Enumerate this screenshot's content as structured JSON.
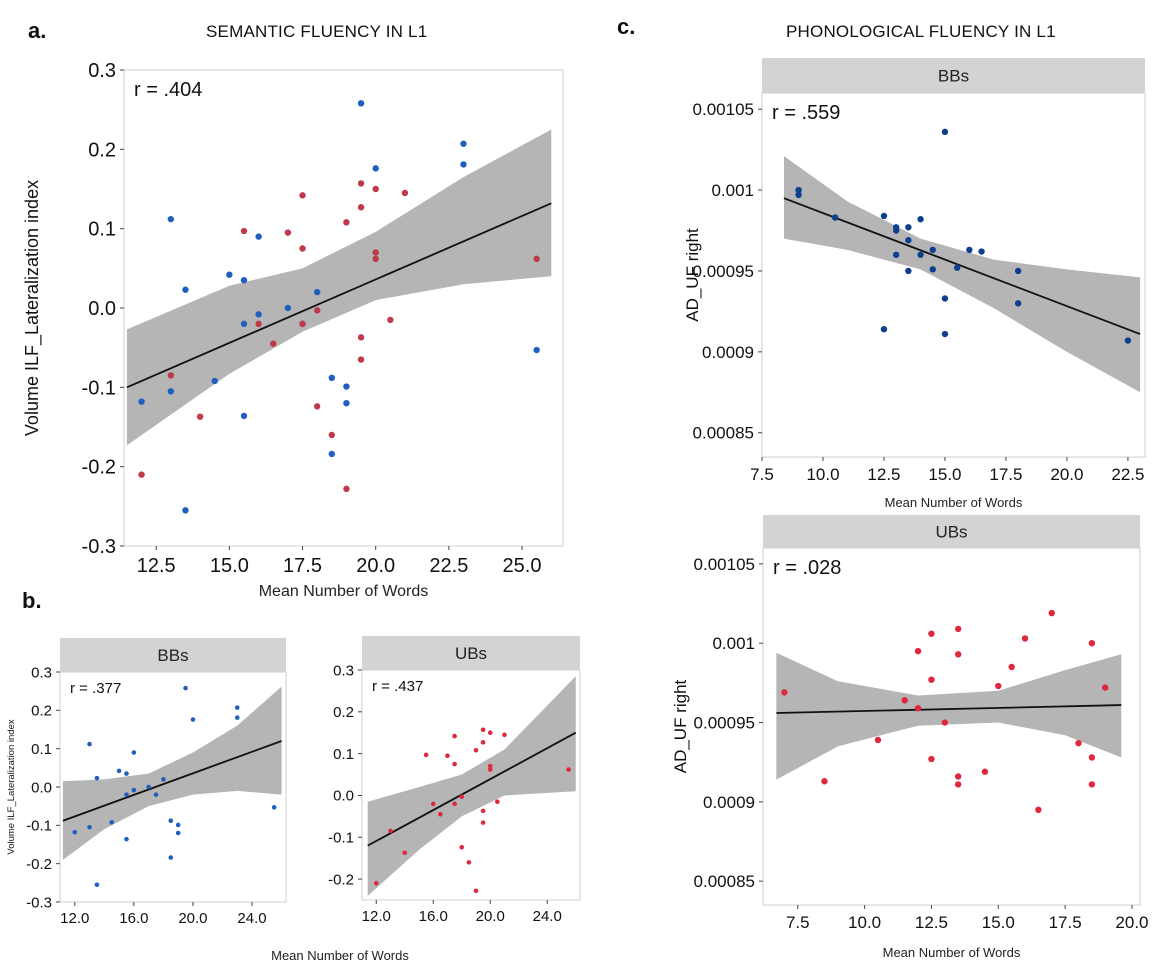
{
  "labels": {
    "a": "a.",
    "b": "b.",
    "c": "c."
  },
  "titles": {
    "left": "SEMANTIC FLUENCY IN L1",
    "right": "PHONOLOGICAL FLUENCY IN L1"
  },
  "colors": {
    "bb": "#1f5fbf",
    "ub_a": "#c0394a",
    "ub": "#e0283c",
    "bb_c": "#0d3f8f",
    "band": "#a8a8a8",
    "strip": "#d3d3d3"
  },
  "chart_data": [
    {
      "id": "a",
      "type": "scatter",
      "xlabel": "Mean Number of Words",
      "ylabel": "Volume ILF_Lateralization index",
      "xlim": [
        11.4,
        26.4
      ],
      "ylim": [
        -0.3,
        0.3
      ],
      "xticks": [
        12.5,
        15.0,
        17.5,
        20.0,
        22.5,
        25.0
      ],
      "xticklabels": [
        "12.5",
        "15.0",
        "17.5",
        "20.0",
        "22.5",
        "25.0"
      ],
      "yticks": [
        -0.3,
        -0.2,
        -0.1,
        0.0,
        0.1,
        0.2,
        0.3
      ],
      "yticklabels": [
        "-0.3",
        "-0.2",
        "-0.1",
        "0.0",
        "0.1",
        "0.2",
        "0.3"
      ],
      "annotation": "r = .404",
      "fit": [
        [
          11.5,
          -0.1
        ],
        [
          26.0,
          0.132
        ]
      ],
      "band_upper": [
        [
          11.5,
          -0.027
        ],
        [
          15,
          0.028
        ],
        [
          17.5,
          0.05
        ],
        [
          20,
          0.096
        ],
        [
          23,
          0.165
        ],
        [
          26,
          0.225
        ]
      ],
      "band_lower": [
        [
          11.5,
          -0.173
        ],
        [
          15,
          -0.083
        ],
        [
          17.5,
          -0.03
        ],
        [
          20,
          0.01
        ],
        [
          23,
          0.03
        ],
        [
          26,
          0.04
        ]
      ],
      "series": [
        {
          "color": "#1f5fbf",
          "points": [
            [
              12.0,
              -0.118
            ],
            [
              13.0,
              0.112
            ],
            [
              13.0,
              -0.105
            ],
            [
              13.5,
              0.023
            ],
            [
              13.5,
              -0.255
            ],
            [
              14.5,
              -0.092
            ],
            [
              15.0,
              0.042
            ],
            [
              15.5,
              0.035
            ],
            [
              15.5,
              -0.02
            ],
            [
              15.5,
              -0.136
            ],
            [
              16.0,
              0.09
            ],
            [
              16.0,
              -0.008
            ],
            [
              17.0,
              0.0
            ],
            [
              17.5,
              -0.02
            ],
            [
              18.0,
              0.02
            ],
            [
              18.5,
              -0.088
            ],
            [
              18.5,
              -0.184
            ],
            [
              19.0,
              -0.099
            ],
            [
              19.0,
              -0.12
            ],
            [
              19.5,
              0.258
            ],
            [
              20.0,
              0.176
            ],
            [
              23.0,
              0.207
            ],
            [
              23.0,
              0.181
            ],
            [
              25.5,
              -0.053
            ]
          ]
        },
        {
          "color": "#c0394a",
          "points": [
            [
              12.0,
              -0.21
            ],
            [
              13.0,
              -0.085
            ],
            [
              14.0,
              -0.137
            ],
            [
              15.5,
              0.097
            ],
            [
              16.0,
              -0.02
            ],
            [
              16.5,
              -0.045
            ],
            [
              17.0,
              0.095
            ],
            [
              17.5,
              0.142
            ],
            [
              17.5,
              0.075
            ],
            [
              17.5,
              -0.02
            ],
            [
              18.0,
              -0.003
            ],
            [
              18.0,
              -0.124
            ],
            [
              18.5,
              -0.16
            ],
            [
              19.0,
              0.108
            ],
            [
              19.0,
              -0.228
            ],
            [
              19.5,
              0.157
            ],
            [
              19.5,
              0.127
            ],
            [
              19.5,
              -0.037
            ],
            [
              19.5,
              -0.065
            ],
            [
              20.0,
              0.15
            ],
            [
              20.0,
              0.07
            ],
            [
              20.0,
              0.062
            ],
            [
              20.5,
              -0.015
            ],
            [
              21.0,
              0.145
            ],
            [
              25.5,
              0.062
            ]
          ]
        }
      ]
    },
    {
      "id": "b-bbs",
      "type": "scatter",
      "strip": "BBs",
      "xlabel": "",
      "ylabel": "Volume ILF_Lateralization index",
      "xlim": [
        11,
        26.3
      ],
      "ylim": [
        -0.3,
        0.3
      ],
      "xticks": [
        12,
        16,
        20,
        24
      ],
      "xticklabels": [
        "12.0",
        "16.0",
        "20.0",
        "24.0"
      ],
      "yticks": [
        -0.3,
        -0.2,
        -0.1,
        0.0,
        0.1,
        0.2,
        0.3
      ],
      "yticklabels": [
        "-0.3",
        "-0.2",
        "-0.1",
        "0.0",
        "0.1",
        "0.2",
        "0.3"
      ],
      "annotation": "r = .377",
      "fit": [
        [
          11.2,
          -0.088
        ],
        [
          26.0,
          0.12
        ]
      ],
      "band_upper": [
        [
          11.2,
          0.015
        ],
        [
          14,
          0.02
        ],
        [
          17,
          0.035
        ],
        [
          20,
          0.09
        ],
        [
          23,
          0.16
        ],
        [
          26,
          0.262
        ]
      ],
      "band_lower": [
        [
          11.2,
          -0.19
        ],
        [
          14,
          -0.11
        ],
        [
          17,
          -0.05
        ],
        [
          20,
          -0.02
        ],
        [
          23,
          -0.01
        ],
        [
          26,
          -0.02
        ]
      ],
      "series": [
        {
          "color": "#1f5fbf",
          "points": [
            [
              12.0,
              -0.118
            ],
            [
              13.0,
              0.112
            ],
            [
              13.0,
              -0.105
            ],
            [
              13.5,
              0.023
            ],
            [
              13.5,
              -0.255
            ],
            [
              14.5,
              -0.092
            ],
            [
              15.0,
              0.042
            ],
            [
              15.5,
              0.035
            ],
            [
              15.5,
              -0.02
            ],
            [
              15.5,
              -0.136
            ],
            [
              16.0,
              0.09
            ],
            [
              16.0,
              -0.008
            ],
            [
              17.0,
              0.0
            ],
            [
              17.5,
              -0.02
            ],
            [
              18.0,
              0.02
            ],
            [
              18.5,
              -0.088
            ],
            [
              18.5,
              -0.184
            ],
            [
              19.0,
              -0.099
            ],
            [
              19.0,
              -0.12
            ],
            [
              19.5,
              0.258
            ],
            [
              20.0,
              0.176
            ],
            [
              23.0,
              0.207
            ],
            [
              23.0,
              0.181
            ],
            [
              25.5,
              -0.053
            ]
          ]
        }
      ]
    },
    {
      "id": "b-ubs",
      "type": "scatter",
      "strip": "UBs",
      "xlabel": "",
      "ylabel": "",
      "xlim": [
        11,
        26.3
      ],
      "ylim": [
        -0.25,
        0.3
      ],
      "xticks": [
        12,
        16,
        20,
        24
      ],
      "xticklabels": [
        "12.0",
        "16.0",
        "20.0",
        "24.0"
      ],
      "yticks": [
        -0.2,
        -0.1,
        0.0,
        0.1,
        0.2,
        0.3
      ],
      "yticklabels": [
        "-0.2",
        "-0.1",
        "0.0",
        "0.1",
        "0.2",
        "0.3"
      ],
      "annotation": "r = .437",
      "fit": [
        [
          11.4,
          -0.12
        ],
        [
          26.0,
          0.15
        ]
      ],
      "band_upper": [
        [
          11.4,
          -0.015
        ],
        [
          15,
          0.02
        ],
        [
          18,
          0.05
        ],
        [
          21,
          0.11
        ],
        [
          26,
          0.285
        ]
      ],
      "band_lower": [
        [
          11.4,
          -0.24
        ],
        [
          15,
          -0.13
        ],
        [
          18,
          -0.05
        ],
        [
          21,
          0.0
        ],
        [
          26,
          0.01
        ]
      ],
      "series": [
        {
          "color": "#e0283c",
          "points": [
            [
              12.0,
              -0.21
            ],
            [
              13.0,
              -0.085
            ],
            [
              14.0,
              -0.137
            ],
            [
              15.5,
              0.097
            ],
            [
              16.0,
              -0.02
            ],
            [
              16.5,
              -0.045
            ],
            [
              17.0,
              0.095
            ],
            [
              17.5,
              0.142
            ],
            [
              17.5,
              0.075
            ],
            [
              17.5,
              -0.02
            ],
            [
              18.0,
              -0.003
            ],
            [
              18.0,
              -0.124
            ],
            [
              18.5,
              -0.16
            ],
            [
              19.0,
              0.108
            ],
            [
              19.0,
              -0.228
            ],
            [
              19.5,
              0.157
            ],
            [
              19.5,
              0.127
            ],
            [
              19.5,
              -0.037
            ],
            [
              19.5,
              -0.065
            ],
            [
              20.0,
              0.15
            ],
            [
              20.0,
              0.07
            ],
            [
              20.0,
              0.062
            ],
            [
              20.5,
              -0.015
            ],
            [
              21.0,
              0.145
            ],
            [
              25.5,
              0.062
            ]
          ]
        }
      ]
    },
    {
      "id": "c-bbs",
      "type": "scatter",
      "strip": "BBs",
      "xlabel": "Mean Number of Words",
      "ylabel": "AD_UF right",
      "xlim": [
        7.5,
        23.2
      ],
      "ylim": [
        0.000835,
        0.00106
      ],
      "xticks": [
        7.5,
        10,
        12.5,
        15,
        17.5,
        20,
        22.5
      ],
      "xticklabels": [
        "7.5",
        "10.0",
        "12.5",
        "15.0",
        "17.5",
        "20.0",
        "22.5"
      ],
      "yticks": [
        0.00085,
        0.0009,
        0.00095,
        0.001,
        0.00105
      ],
      "yticklabels": [
        "0.00085",
        "0.0009",
        "0.00095",
        "0.001",
        "0.00105"
      ],
      "annotation": "r = .559",
      "fit": [
        [
          8.4,
          0.000995
        ],
        [
          23.0,
          0.000911
        ]
      ],
      "band_upper": [
        [
          8.4,
          0.001021
        ],
        [
          11,
          0.000993
        ],
        [
          14,
          0.00097
        ],
        [
          17,
          0.000957
        ],
        [
          20,
          0.000951
        ],
        [
          23,
          0.000946
        ]
      ],
      "band_lower": [
        [
          8.4,
          0.00097
        ],
        [
          11,
          0.000963
        ],
        [
          14,
          0.000951
        ],
        [
          17,
          0.000927
        ],
        [
          20,
          0.0009
        ],
        [
          23,
          0.000875
        ]
      ],
      "series": [
        {
          "color": "#0d3f8f",
          "points": [
            [
              9.0,
              0.001
            ],
            [
              9.0,
              0.000997
            ],
            [
              10.5,
              0.000983
            ],
            [
              12.5,
              0.000984
            ],
            [
              12.5,
              0.000914
            ],
            [
              13.0,
              0.000977
            ],
            [
              13.0,
              0.000975
            ],
            [
              13.0,
              0.00096
            ],
            [
              13.5,
              0.000977
            ],
            [
              13.5,
              0.000969
            ],
            [
              13.5,
              0.00095
            ],
            [
              14.0,
              0.000982
            ],
            [
              14.0,
              0.00096
            ],
            [
              14.5,
              0.000963
            ],
            [
              14.5,
              0.000951
            ],
            [
              15.0,
              0.001036
            ],
            [
              15.0,
              0.000933
            ],
            [
              15.0,
              0.000911
            ],
            [
              15.5,
              0.000952
            ],
            [
              16.0,
              0.000963
            ],
            [
              16.5,
              0.000962
            ],
            [
              18.0,
              0.00095
            ],
            [
              18.0,
              0.00093
            ],
            [
              22.5,
              0.000907
            ]
          ]
        }
      ]
    },
    {
      "id": "c-ubs",
      "type": "scatter",
      "strip": "UBs",
      "xlabel": "Mean Number of Words",
      "ylabel": "AD_UF right",
      "xlim": [
        6.2,
        20.3
      ],
      "ylim": [
        0.000835,
        0.00106
      ],
      "xticks": [
        7.5,
        10,
        12.5,
        15,
        17.5,
        20
      ],
      "xticklabels": [
        "7.5",
        "10.0",
        "12.5",
        "15.0",
        "17.5",
        "20.0"
      ],
      "yticks": [
        0.00085,
        0.0009,
        0.00095,
        0.001,
        0.00105
      ],
      "yticklabels": [
        "0.00085",
        "0.0009",
        "0.00095",
        "0.001",
        "0.00105"
      ],
      "annotation": "r = .028",
      "fit": [
        [
          6.7,
          0.000956
        ],
        [
          19.6,
          0.000961
        ]
      ],
      "band_upper": [
        [
          6.7,
          0.000994
        ],
        [
          9,
          0.000976
        ],
        [
          12,
          0.000967
        ],
        [
          15,
          0.00097
        ],
        [
          17.5,
          0.000983
        ],
        [
          19.6,
          0.000993
        ]
      ],
      "band_lower": [
        [
          6.7,
          0.000914
        ],
        [
          9,
          0.000935
        ],
        [
          12,
          0.000948
        ],
        [
          15,
          0.00095
        ],
        [
          17.5,
          0.000942
        ],
        [
          19.6,
          0.000928
        ]
      ],
      "series": [
        {
          "color": "#e0283c",
          "points": [
            [
              7.0,
              0.000969
            ],
            [
              8.5,
              0.000913
            ],
            [
              10.5,
              0.000939
            ],
            [
              11.5,
              0.000964
            ],
            [
              12.0,
              0.000995
            ],
            [
              12.0,
              0.000959
            ],
            [
              12.5,
              0.001006
            ],
            [
              12.5,
              0.000977
            ],
            [
              12.5,
              0.000927
            ],
            [
              13.0,
              0.00095
            ],
            [
              13.5,
              0.001009
            ],
            [
              13.5,
              0.000993
            ],
            [
              13.5,
              0.000916
            ],
            [
              13.5,
              0.000911
            ],
            [
              14.5,
              0.000919
            ],
            [
              15.0,
              0.000973
            ],
            [
              15.5,
              0.000985
            ],
            [
              16.0,
              0.001003
            ],
            [
              16.5,
              0.000895
            ],
            [
              17.0,
              0.001019
            ],
            [
              18.0,
              0.000937
            ],
            [
              18.5,
              0.001
            ],
            [
              18.5,
              0.000928
            ],
            [
              18.5,
              0.000911
            ],
            [
              19.0,
              0.000972
            ]
          ]
        }
      ]
    }
  ]
}
